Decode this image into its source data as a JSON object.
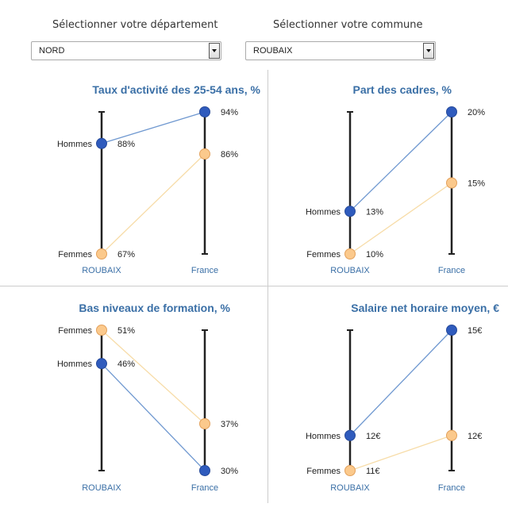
{
  "filters": {
    "departement": {
      "label": "Sélectionner votre département",
      "value": "NORD"
    },
    "commune": {
      "label": "Sélectionner votre commune",
      "value": "ROUBAIX"
    }
  },
  "colors": {
    "hommes": "#2f5bbd",
    "femmes": "#fbc98c",
    "hommes_line": "#6f98d0",
    "femmes_line": "#f7dca8",
    "title": "#3a6fa6",
    "axis": "#222222"
  },
  "chart_data": [
    {
      "type": "slope",
      "title": "Taux d'activité des 25-54 ans, %",
      "unit": "%",
      "axes": [
        "ROUBAIX",
        "France"
      ],
      "ylim": [
        67,
        94
      ],
      "series": [
        {
          "name": "Hommes",
          "values": [
            88,
            94
          ],
          "labels": [
            "88%",
            "94%"
          ]
        },
        {
          "name": "Femmes",
          "values": [
            67,
            86
          ],
          "labels": [
            "67%",
            "86%"
          ]
        }
      ]
    },
    {
      "type": "slope",
      "title": "Part des cadres, %",
      "unit": "%",
      "axes": [
        "ROUBAIX",
        "France"
      ],
      "ylim": [
        10,
        20
      ],
      "series": [
        {
          "name": "Hommes",
          "values": [
            13,
            20
          ],
          "labels": [
            "13%",
            "20%"
          ]
        },
        {
          "name": "Femmes",
          "values": [
            10,
            15
          ],
          "labels": [
            "10%",
            "15%"
          ]
        }
      ]
    },
    {
      "type": "slope",
      "title": "Bas niveaux de formation, %",
      "unit": "%",
      "axes": [
        "ROUBAIX",
        "France"
      ],
      "ylim": [
        30,
        51
      ],
      "series": [
        {
          "name": "Hommes",
          "values": [
            46,
            30
          ],
          "labels": [
            "46%",
            "30%"
          ]
        },
        {
          "name": "Femmes",
          "values": [
            51,
            37
          ],
          "labels": [
            "51%",
            "37%"
          ]
        }
      ]
    },
    {
      "type": "slope",
      "title": "Salaire net horaire moyen, €",
      "unit": "€",
      "axes": [
        "ROUBAIX",
        "France"
      ],
      "ylim": [
        11,
        15
      ],
      "series": [
        {
          "name": "Hommes",
          "values": [
            12,
            15
          ],
          "labels": [
            "12€",
            "15€"
          ]
        },
        {
          "name": "Femmes",
          "values": [
            11,
            12
          ],
          "labels": [
            "11€",
            "12€"
          ]
        }
      ]
    }
  ]
}
